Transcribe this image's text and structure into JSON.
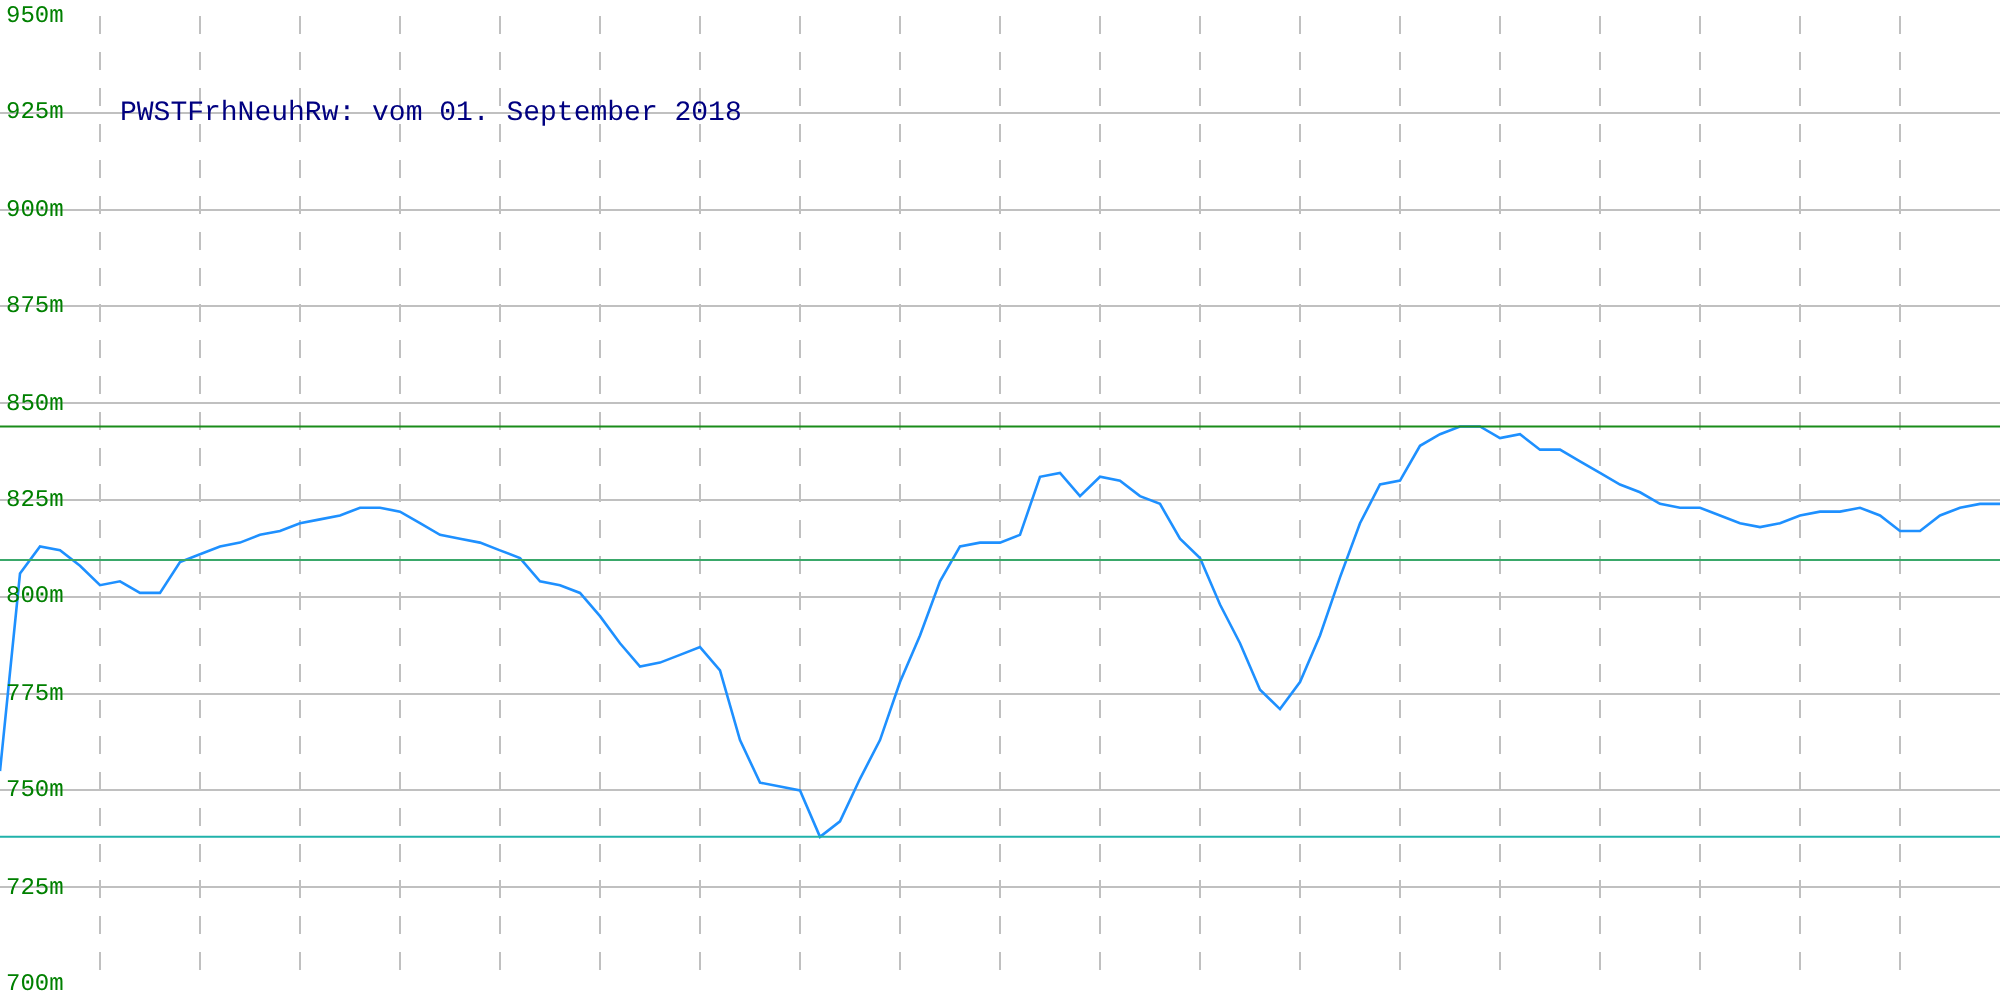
{
  "chart_data": {
    "type": "line",
    "title": "PWSTFrhNeuhRw: vom 01. September 2018",
    "categories": [
      null,
      null,
      null,
      null,
      null,
      null,
      null,
      null,
      null,
      null,
      null,
      null,
      null,
      null,
      null,
      null,
      null,
      null,
      null,
      null,
      null,
      null,
      null,
      null,
      null,
      null,
      null,
      null,
      null,
      null,
      null,
      null,
      null,
      null,
      null,
      null,
      null,
      null,
      null,
      null,
      null,
      null,
      null,
      null,
      null,
      null,
      null,
      null,
      null,
      null,
      null,
      null,
      null,
      null,
      null,
      null,
      null,
      null,
      null,
      null,
      null,
      null,
      null,
      null,
      null,
      null,
      null,
      null,
      null,
      null,
      null,
      null,
      null,
      null,
      null,
      null,
      null,
      null,
      null,
      null,
      null,
      null,
      null,
      null,
      null,
      null,
      null,
      null,
      null,
      null,
      null,
      null,
      null,
      null,
      null,
      null,
      null,
      null,
      null,
      null,
      null
    ],
    "series": [
      {
        "color": "#1e90ff",
        "values": [
          755,
          806,
          813,
          812,
          808,
          803,
          804,
          801,
          801,
          809,
          811,
          813,
          814,
          816,
          817,
          819,
          820,
          821,
          823,
          823,
          822,
          819,
          816,
          815,
          814,
          812,
          810,
          804,
          803,
          801,
          795,
          788,
          782,
          783,
          785,
          787,
          781,
          763,
          752,
          751,
          750,
          738,
          742,
          753,
          763,
          778,
          790,
          804,
          813,
          814,
          814,
          816,
          831,
          832,
          826,
          831,
          830,
          826,
          824,
          815,
          810,
          798,
          788,
          776,
          771,
          778,
          790,
          805,
          819,
          829,
          830,
          839,
          842,
          844,
          844,
          841,
          842,
          838,
          838,
          835,
          832,
          829,
          827,
          824,
          823,
          823,
          821,
          819,
          818,
          819,
          821,
          822,
          822,
          823,
          821,
          817,
          817,
          821,
          823,
          824,
          824
        ]
      }
    ],
    "ylim": [
      700,
      950
    ],
    "yticks": [
      {
        "value": 700,
        "label": "700m"
      },
      {
        "value": 725,
        "label": "725m"
      },
      {
        "value": 750,
        "label": "750m"
      },
      {
        "value": 775,
        "label": "775m"
      },
      {
        "value": 800,
        "label": "800m"
      },
      {
        "value": 825,
        "label": "825m"
      },
      {
        "value": 850,
        "label": "850m"
      },
      {
        "value": 875,
        "label": "875m"
      },
      {
        "value": 900,
        "label": "900m"
      },
      {
        "value": 925,
        "label": "925m"
      },
      {
        "value": 950,
        "label": "950m"
      }
    ],
    "ref_lines": [
      {
        "axis": "y",
        "value": 844,
        "color": "#1a8c1a"
      },
      {
        "axis": "y",
        "value": 809.5,
        "color": "#3aa86a"
      },
      {
        "axis": "y",
        "value": 738,
        "color": "#20b2aa"
      }
    ],
    "grid": true,
    "marker": "none",
    "line_style": "solid",
    "tick_labels": "y"
  }
}
